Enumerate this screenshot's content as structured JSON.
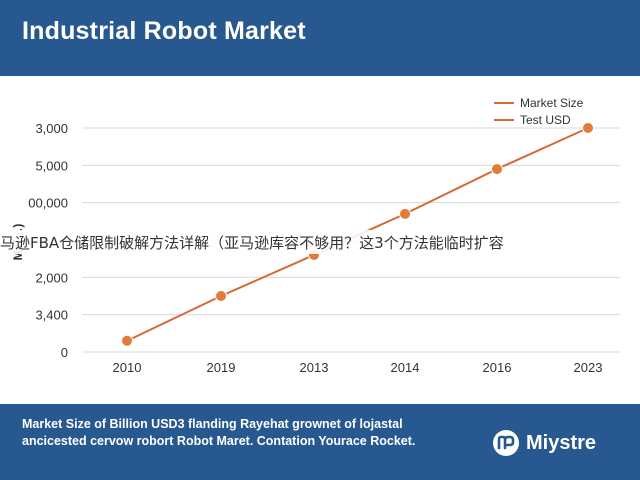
{
  "header": {
    "title": "Industrial Robot Market"
  },
  "overlay_text": "马逊FBA仓储限制破解方法详解（亚马逊库容不够用？这3个方法能临时扩容",
  "footer": {
    "caption": "Market Size of Billion USD3 flanding Rayehat grownet of lojastal ancicested cervow robort Robot Maret. Contation Yourace Rocket.",
    "logo_text": "Miystre"
  },
  "chart_data": {
    "type": "line",
    "title": "Industrial Robot Market",
    "ylabel": "Ma(…)",
    "categories": [
      "2010",
      "2019",
      "2013",
      "2014",
      "2016",
      "2023"
    ],
    "y_tick_labels": [
      "0",
      "3,400",
      "2,000",
      "",
      "00,000",
      "5,000",
      "3,000"
    ],
    "ylim": [
      0,
      6
    ],
    "grid": true,
    "legend": {
      "position": "top-right",
      "entries": [
        "Market Size",
        "Test USD"
      ]
    },
    "series": [
      {
        "name": "Market Size",
        "color": "#e07b3a",
        "values": [
          0.3,
          1.5,
          2.6,
          3.7,
          4.9,
          6.0
        ]
      }
    ]
  },
  "colors": {
    "line": "#d66a35",
    "marker": "#e07b3a",
    "band": "#27588f",
    "grid": "#d9d9d9"
  }
}
